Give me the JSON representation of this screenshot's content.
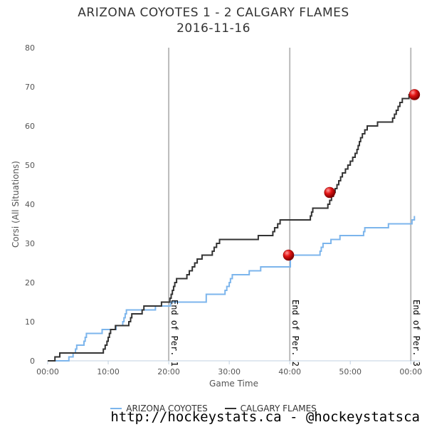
{
  "title_line1": "ARIZONA COYOTES 1 - 2 CALGARY FLAMES",
  "title_line2": "2016-11-16",
  "footer": "http://hockeystats.ca - @hockeystatsca",
  "chart_data": {
    "type": "line",
    "title": "ARIZONA COYOTES 1 - 2 CALGARY FLAMES 2016-11-16",
    "xlabel": "Game Time",
    "ylabel": "Corsi (All Situations)",
    "xlim": [
      0,
      61.5
    ],
    "ylim": [
      0,
      80
    ],
    "x_ticks": [
      {
        "v": 0,
        "label": "00:00"
      },
      {
        "v": 10,
        "label": "10:00"
      },
      {
        "v": 20,
        "label": "20:00"
      },
      {
        "v": 30,
        "label": "30:00"
      },
      {
        "v": 40,
        "label": "40:00"
      },
      {
        "v": 50,
        "label": "50:00"
      },
      {
        "v": 60,
        "label": "00:00"
      }
    ],
    "y_ticks": [
      0,
      10,
      20,
      30,
      40,
      50,
      60,
      70,
      80
    ],
    "period_markers": [
      {
        "x": 20,
        "label": "End of Per. 1"
      },
      {
        "x": 40,
        "label": "End of Per. 2"
      },
      {
        "x": 60,
        "label": "End of Per. 3"
      }
    ],
    "series": [
      {
        "name": "ARIZONA COYOTES",
        "color": "#7cb5ec",
        "points": [
          [
            0,
            0
          ],
          [
            3.2,
            0
          ],
          [
            3.5,
            1
          ],
          [
            4.2,
            2
          ],
          [
            4.6,
            3
          ],
          [
            4.8,
            4
          ],
          [
            6.0,
            5
          ],
          [
            6.2,
            6
          ],
          [
            6.4,
            7
          ],
          [
            8.8,
            7
          ],
          [
            9.0,
            8
          ],
          [
            11.0,
            8
          ],
          [
            11.3,
            9
          ],
          [
            12.4,
            10
          ],
          [
            12.6,
            11
          ],
          [
            12.8,
            12
          ],
          [
            13.0,
            13
          ],
          [
            17.6,
            13
          ],
          [
            17.8,
            14
          ],
          [
            19.9,
            14
          ],
          [
            20.3,
            15
          ],
          [
            25.8,
            15
          ],
          [
            26.2,
            17
          ],
          [
            29.0,
            17
          ],
          [
            29.3,
            18
          ],
          [
            29.6,
            19
          ],
          [
            30.0,
            20
          ],
          [
            30.2,
            21
          ],
          [
            30.5,
            22
          ],
          [
            33.0,
            22
          ],
          [
            33.3,
            23
          ],
          [
            35.0,
            23
          ],
          [
            35.2,
            24
          ],
          [
            39.8,
            24
          ],
          [
            40.1,
            26
          ],
          [
            40.3,
            27
          ],
          [
            44.8,
            27
          ],
          [
            45.0,
            28
          ],
          [
            45.2,
            29
          ],
          [
            45.5,
            30
          ],
          [
            46.5,
            30
          ],
          [
            46.8,
            31
          ],
          [
            48.0,
            31
          ],
          [
            48.3,
            32
          ],
          [
            52.0,
            32
          ],
          [
            52.2,
            33
          ],
          [
            52.4,
            34
          ],
          [
            56.0,
            34
          ],
          [
            56.3,
            35
          ],
          [
            60.0,
            35
          ],
          [
            60.2,
            36
          ],
          [
            60.6,
            37
          ]
        ]
      },
      {
        "name": "CALGARY FLAMES",
        "color": "#333333",
        "points": [
          [
            0,
            0
          ],
          [
            1.0,
            0
          ],
          [
            1.2,
            1
          ],
          [
            1.8,
            1
          ],
          [
            2.0,
            2
          ],
          [
            9.0,
            2
          ],
          [
            9.2,
            3
          ],
          [
            9.5,
            4
          ],
          [
            9.8,
            5
          ],
          [
            10.0,
            6
          ],
          [
            10.2,
            7
          ],
          [
            10.4,
            8
          ],
          [
            11.0,
            8
          ],
          [
            11.2,
            9
          ],
          [
            13.2,
            9
          ],
          [
            13.4,
            10
          ],
          [
            13.7,
            11
          ],
          [
            13.9,
            12
          ],
          [
            15.3,
            12
          ],
          [
            15.6,
            13
          ],
          [
            15.9,
            14
          ],
          [
            18.6,
            14
          ],
          [
            18.8,
            15
          ],
          [
            20.0,
            15
          ],
          [
            20.2,
            16
          ],
          [
            20.4,
            17
          ],
          [
            20.6,
            18
          ],
          [
            20.8,
            19
          ],
          [
            21.0,
            20
          ],
          [
            21.3,
            21
          ],
          [
            22.8,
            21
          ],
          [
            23.0,
            22
          ],
          [
            23.4,
            23
          ],
          [
            23.9,
            24
          ],
          [
            24.3,
            25
          ],
          [
            24.7,
            26
          ],
          [
            25.3,
            26
          ],
          [
            25.5,
            27
          ],
          [
            27.0,
            27
          ],
          [
            27.2,
            28
          ],
          [
            27.5,
            29
          ],
          [
            27.9,
            30
          ],
          [
            28.4,
            31
          ],
          [
            34.5,
            31
          ],
          [
            34.8,
            32
          ],
          [
            37.0,
            32
          ],
          [
            37.2,
            33
          ],
          [
            37.5,
            34
          ],
          [
            38.0,
            35
          ],
          [
            38.4,
            36
          ],
          [
            43.0,
            36
          ],
          [
            43.4,
            37
          ],
          [
            43.6,
            38
          ],
          [
            43.8,
            39
          ],
          [
            46.0,
            39
          ],
          [
            46.3,
            40
          ],
          [
            46.6,
            41
          ],
          [
            46.9,
            42
          ],
          [
            47.2,
            43
          ],
          [
            47.5,
            44
          ],
          [
            47.8,
            45
          ],
          [
            48.1,
            46
          ],
          [
            48.4,
            47
          ],
          [
            48.7,
            48
          ],
          [
            49.2,
            49
          ],
          [
            49.6,
            50
          ],
          [
            50.0,
            51
          ],
          [
            50.4,
            52
          ],
          [
            50.8,
            53
          ],
          [
            51.1,
            54
          ],
          [
            51.3,
            55
          ],
          [
            51.5,
            56
          ],
          [
            51.7,
            57
          ],
          [
            52.0,
            58
          ],
          [
            52.4,
            59
          ],
          [
            52.8,
            60
          ],
          [
            54.2,
            60
          ],
          [
            54.5,
            61
          ],
          [
            56.8,
            61
          ],
          [
            57.0,
            62
          ],
          [
            57.3,
            63
          ],
          [
            57.6,
            64
          ],
          [
            57.9,
            65
          ],
          [
            58.2,
            66
          ],
          [
            58.6,
            67
          ],
          [
            59.4,
            67
          ],
          [
            59.7,
            68
          ],
          [
            60.4,
            68
          ]
        ]
      }
    ],
    "goals": [
      {
        "team": "ARIZONA COYOTES",
        "x": 39.8,
        "y": 27
      },
      {
        "team": "CALGARY FLAMES",
        "x": 46.6,
        "y": 43
      },
      {
        "team": "CALGARY FLAMES",
        "x": 60.6,
        "y": 68
      }
    ]
  }
}
